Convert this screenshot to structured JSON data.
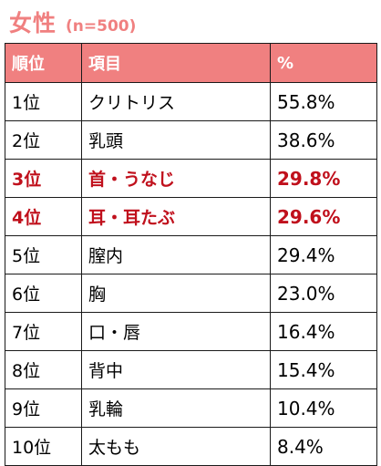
{
  "title": {
    "main": "女性",
    "sub": "(n=500)"
  },
  "table": {
    "headers": [
      "順位",
      "項目",
      "%"
    ],
    "rows": [
      {
        "rank": "1位",
        "item": "クリトリス",
        "pct": "55.8%",
        "highlight": false
      },
      {
        "rank": "2位",
        "item": "乳頭",
        "pct": "38.6%",
        "highlight": false
      },
      {
        "rank": "3位",
        "item": "首・うなじ",
        "pct": "29.8%",
        "highlight": true
      },
      {
        "rank": "4位",
        "item": "耳・耳たぶ",
        "pct": "29.6%",
        "highlight": true
      },
      {
        "rank": "5位",
        "item": "膣内",
        "pct": "29.4%",
        "highlight": false
      },
      {
        "rank": "6位",
        "item": "胸",
        "pct": "23.0%",
        "highlight": false
      },
      {
        "rank": "7位",
        "item": "口・唇",
        "pct": "16.4%",
        "highlight": false
      },
      {
        "rank": "8位",
        "item": "背中",
        "pct": "15.4%",
        "highlight": false
      },
      {
        "rank": "9位",
        "item": "乳輪",
        "pct": "10.4%",
        "highlight": false
      },
      {
        "rank": "10位",
        "item": "太もも",
        "pct": "8.4%",
        "highlight": false
      }
    ]
  },
  "colors": {
    "accent": "#f08080",
    "highlight_text": "#c0101c",
    "border": "#1a1a1a"
  }
}
